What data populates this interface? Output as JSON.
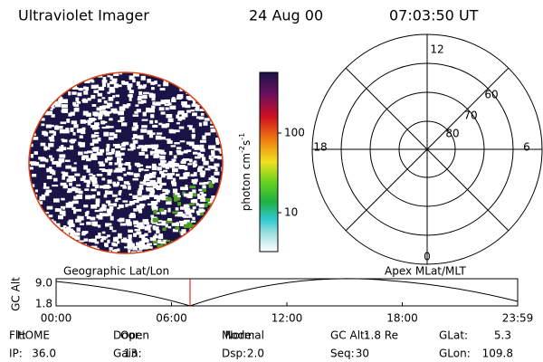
{
  "header": {
    "title": "Ultraviolet Imager",
    "date": "24 Aug 00",
    "time": "07:03:50 UT"
  },
  "colorbar": {
    "unit": {
      "base": "photon cm",
      "exp1": "-2",
      "mid": "s",
      "exp2": "-1"
    },
    "ticks": [
      "100",
      "10"
    ]
  },
  "polar": {
    "mlt_labels": [
      "12",
      "18",
      "6",
      "0"
    ],
    "lat_labels": [
      "60",
      "70",
      "80"
    ]
  },
  "map_labels": {
    "left": "Geographic Lat/Lon",
    "right": "Apex MLat/MLT"
  },
  "orbit_plot": {
    "ylabel": "GC Alt",
    "yticks": [
      "9.0",
      "1.8"
    ],
    "xticks": [
      "00:00",
      "06:00",
      "12:00",
      "18:00",
      "23:59"
    ]
  },
  "status": {
    "rows": [
      [
        {
          "label": "Flt:",
          "value": "HOME"
        },
        {
          "label": "Door:",
          "value": "Open"
        },
        {
          "label": "Mode:",
          "value": "Normal"
        },
        {
          "label": "GC Alt:",
          "value": "1.8 Re"
        },
        {
          "label": "GLat:",
          "value": "5.3"
        }
      ],
      [
        {
          "label": "IP:",
          "value": "36.0"
        },
        {
          "label": "Gain:",
          "value": "13"
        },
        {
          "label": "Dsp:",
          "value": "2.0"
        },
        {
          "label": "Seq:",
          "value": "30"
        },
        {
          "label": "GLon:",
          "value": "109.8"
        }
      ]
    ]
  }
}
